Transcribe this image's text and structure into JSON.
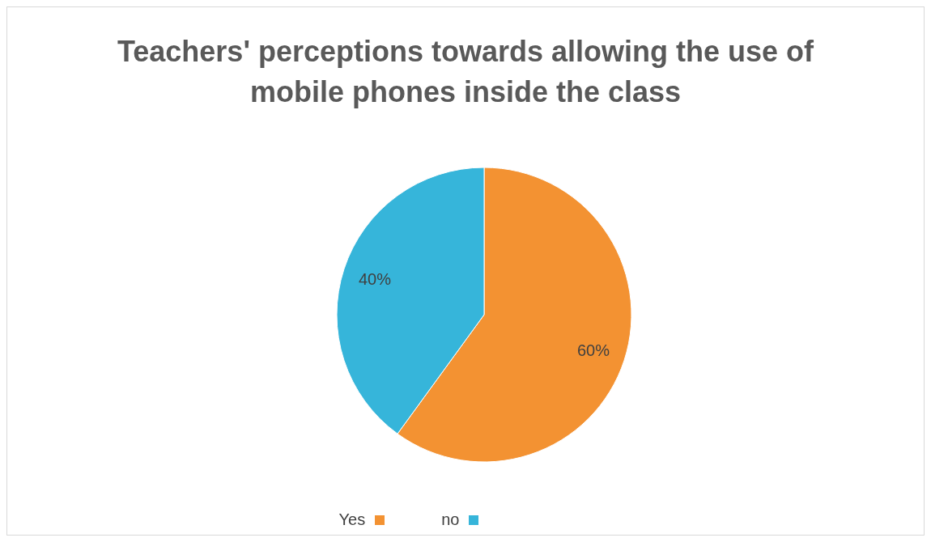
{
  "chart_data": {
    "type": "pie",
    "title": "Teachers' perceptions towards allowing the use of mobile phones inside the class",
    "categories": [
      "Yes",
      "no"
    ],
    "values": [
      60,
      40
    ],
    "value_labels": [
      "60%",
      "40%"
    ],
    "colors": [
      "#f39232",
      "#36b5da"
    ],
    "legend": "bottom"
  }
}
